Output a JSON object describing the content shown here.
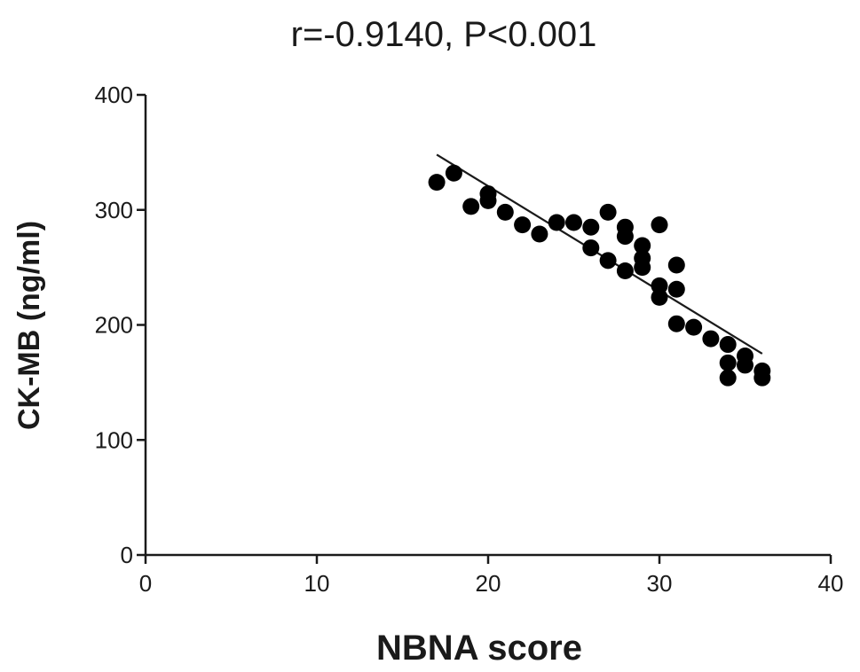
{
  "chart_data": {
    "type": "scatter",
    "title": "r=-0.9140,  P<0.001",
    "xlabel": "NBNA score",
    "ylabel": "CK-MB (ng/ml)",
    "xlim": [
      0,
      40
    ],
    "ylim": [
      0,
      400
    ],
    "x_ticks": [
      0,
      10,
      20,
      30,
      40
    ],
    "y_ticks": [
      0,
      100,
      200,
      300,
      400
    ],
    "grid": false,
    "marker_color": "#000000",
    "series": [
      {
        "points": [
          {
            "x": 17,
            "y": 324
          },
          {
            "x": 18,
            "y": 332
          },
          {
            "x": 19,
            "y": 303
          },
          {
            "x": 20,
            "y": 314
          },
          {
            "x": 20,
            "y": 308
          },
          {
            "x": 21,
            "y": 298
          },
          {
            "x": 22,
            "y": 287
          },
          {
            "x": 23,
            "y": 279
          },
          {
            "x": 24,
            "y": 289
          },
          {
            "x": 25,
            "y": 289
          },
          {
            "x": 26,
            "y": 285
          },
          {
            "x": 26,
            "y": 267
          },
          {
            "x": 27,
            "y": 298
          },
          {
            "x": 27,
            "y": 256
          },
          {
            "x": 28,
            "y": 285
          },
          {
            "x": 28,
            "y": 277
          },
          {
            "x": 28,
            "y": 247
          },
          {
            "x": 29,
            "y": 269
          },
          {
            "x": 29,
            "y": 258
          },
          {
            "x": 29,
            "y": 250
          },
          {
            "x": 30,
            "y": 287
          },
          {
            "x": 30,
            "y": 234
          },
          {
            "x": 30,
            "y": 224
          },
          {
            "x": 31,
            "y": 252
          },
          {
            "x": 31,
            "y": 231
          },
          {
            "x": 31,
            "y": 201
          },
          {
            "x": 32,
            "y": 198
          },
          {
            "x": 33,
            "y": 188
          },
          {
            "x": 34,
            "y": 183
          },
          {
            "x": 34,
            "y": 167
          },
          {
            "x": 34,
            "y": 154
          },
          {
            "x": 35,
            "y": 173
          },
          {
            "x": 35,
            "y": 165
          },
          {
            "x": 36,
            "y": 160
          },
          {
            "x": 36,
            "y": 154
          }
        ]
      }
    ],
    "fit_line": {
      "x": [
        17,
        36
      ],
      "y": [
        348,
        175
      ]
    }
  }
}
